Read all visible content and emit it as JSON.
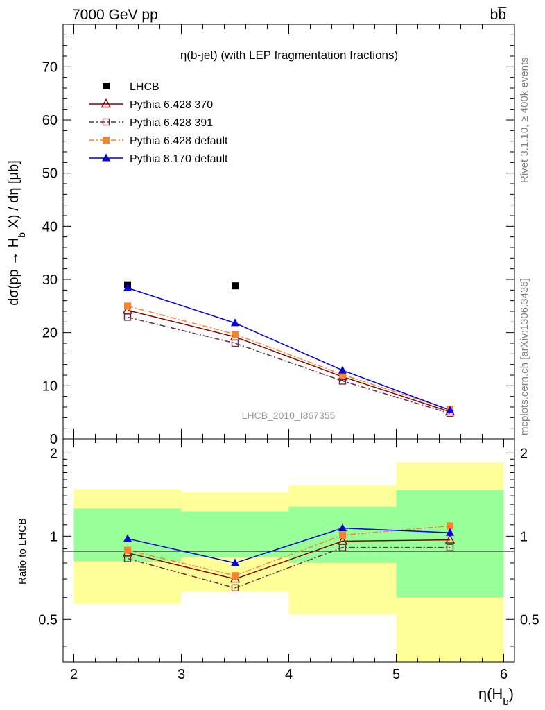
{
  "header": {
    "left": "7000 GeV pp",
    "right": "bb̅"
  },
  "side_labels": {
    "rivet": "Rivet 3.1.10, ≥ 400k events",
    "mcplots": "mcplots.cern.ch [arXiv:1306.3436]"
  },
  "chart_data": [
    {
      "type": "line",
      "title": "η(b-jet) (with LEP fragmentation fractions)",
      "watermark": "LHCB_2010_I867355",
      "ylabel": "dσ(pp → H_b X) / dη [μb]",
      "ylabel_parts": {
        "main": "dσ(pp → H",
        "sub": "b",
        "tail": " X) / dη [μb]"
      },
      "xlim": [
        1.9,
        6.1
      ],
      "ylim": [
        0,
        78
      ],
      "yticks": [
        0,
        10,
        20,
        30,
        40,
        50,
        60,
        70
      ],
      "x": [
        2.5,
        3.5,
        4.5,
        5.5
      ],
      "legend_position": "top-left",
      "series": [
        {
          "name": "LHCB",
          "values": [
            29.0,
            28.8,
            null,
            null
          ],
          "style": "data",
          "color": "#000000",
          "marker": "square-filled"
        },
        {
          "name": "Pythia 6.428 370",
          "values": [
            24.2,
            19.2,
            11.7,
            5.1
          ],
          "style": "solid",
          "color": "#8b0000",
          "marker": "triangle-open"
        },
        {
          "name": "Pythia 6.428 391",
          "values": [
            22.9,
            18.0,
            10.9,
            4.8
          ],
          "style": "dashdot",
          "color": "#6b2f3f",
          "marker": "square-open"
        },
        {
          "name": "Pythia 6.428 default",
          "values": [
            25.0,
            19.7,
            12.1,
            5.5
          ],
          "style": "dashdot",
          "color": "#ff7f2a",
          "marker": "square-filled"
        },
        {
          "name": "Pythia 8.170 default",
          "values": [
            28.4,
            21.8,
            12.9,
            5.4
          ],
          "style": "solid",
          "color": "#0000e0",
          "marker": "triangle-filled"
        }
      ]
    },
    {
      "type": "line",
      "ylabel": "Ratio to LHCB",
      "xlabel": "η(H_b)",
      "xlabel_parts": {
        "main": "η(H",
        "sub": "b",
        "tail": ")"
      },
      "xlim": [
        1.9,
        6.1
      ],
      "ylim": [
        0.35,
        2.25
      ],
      "yticks": [
        0.5,
        1,
        2
      ],
      "ytick_labels": [
        "0.5",
        "1",
        "2"
      ],
      "xticks": [
        2,
        3,
        4,
        5,
        6
      ],
      "xtick_labels": [
        "2",
        "3",
        "4",
        "5",
        "6"
      ],
      "x": [
        2.5,
        3.5,
        4.5,
        5.5
      ],
      "bands": {
        "bins": [
          [
            2,
            3
          ],
          [
            3,
            4
          ],
          [
            4,
            5
          ],
          [
            5,
            6
          ]
        ],
        "yellow": [
          [
            0.57,
            1.48
          ],
          [
            0.63,
            1.44
          ],
          [
            0.52,
            1.53
          ],
          [
            0.35,
            1.85
          ]
        ],
        "green": [
          [
            0.81,
            1.26
          ],
          [
            0.84,
            1.23
          ],
          [
            0.8,
            1.28
          ],
          [
            0.6,
            1.47
          ]
        ],
        "yellow_color": "#ffff99",
        "green_color": "#99ff99"
      },
      "series": [
        {
          "name": "Pythia 6.428 370",
          "values": [
            0.87,
            0.7,
            0.96,
            0.97
          ],
          "style": "solid",
          "color": "#8b0000",
          "marker": "triangle-open"
        },
        {
          "name": "Pythia 6.428 391",
          "values": [
            0.83,
            0.65,
            0.91,
            0.91
          ],
          "style": "dashdot",
          "color": "#6b2f3f",
          "marker": "square-open"
        },
        {
          "name": "Pythia 6.428 default",
          "values": [
            0.89,
            0.72,
            1.01,
            1.09
          ],
          "style": "dashdot",
          "color": "#ff7f2a",
          "marker": "square-filled"
        },
        {
          "name": "Pythia 8.170 default",
          "values": [
            0.98,
            0.8,
            1.07,
            1.03
          ],
          "style": "solid",
          "color": "#0000e0",
          "marker": "triangle-filled"
        }
      ]
    }
  ]
}
